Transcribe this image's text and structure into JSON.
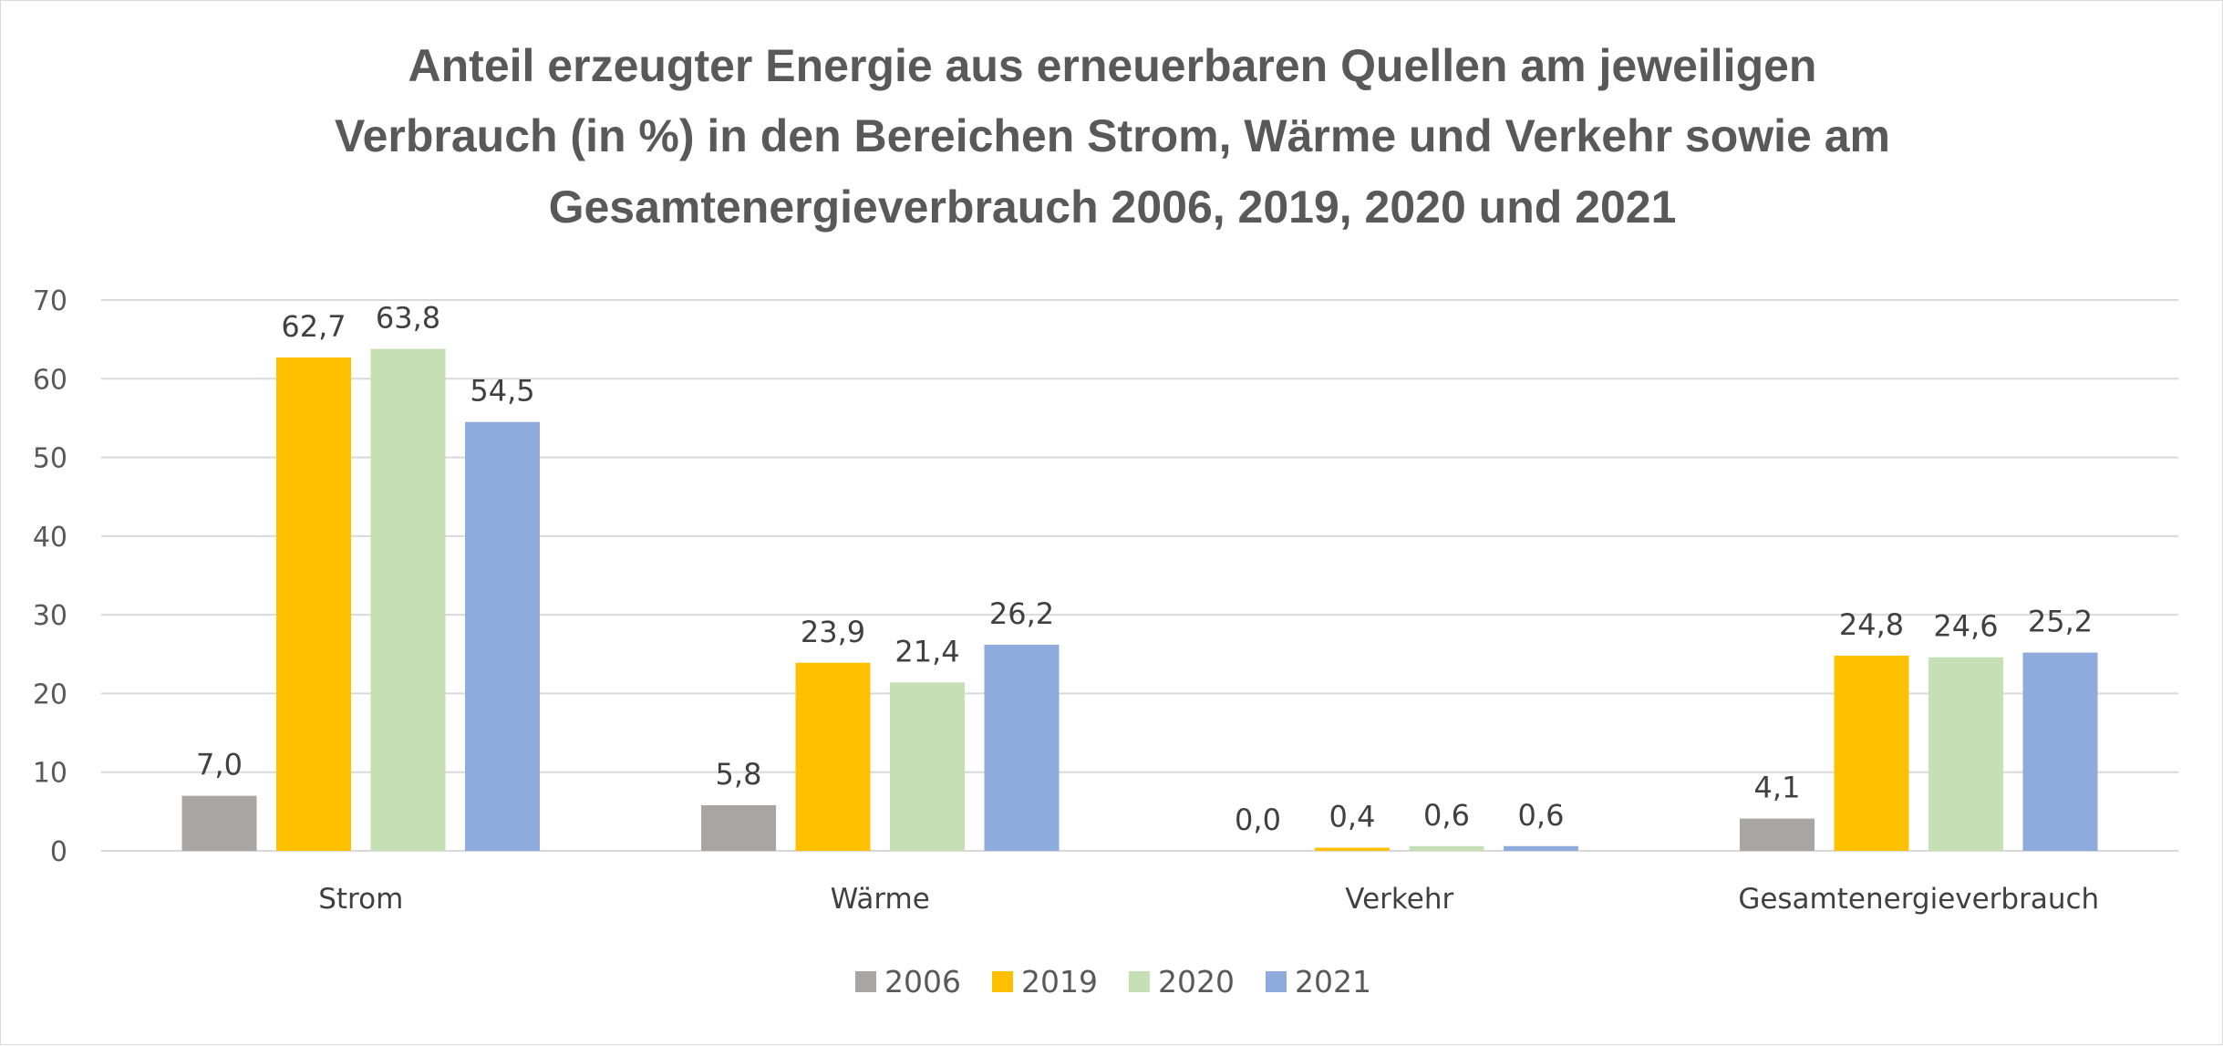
{
  "chart_data": {
    "type": "bar",
    "title": [
      "Anteil erzeugter Energie aus erneuerbaren Quellen am jeweiligen",
      "Verbrauch (in %) in den Bereichen Strom, Wärme und Verkehr sowie am",
      "Gesamtenergieverbrauch 2006, 2019, 2020 und 2021"
    ],
    "xlabel": "",
    "ylabel": "",
    "ylim": [
      0,
      70
    ],
    "yticks": [
      "0",
      "10",
      "20",
      "30",
      "40",
      "50",
      "60",
      "70"
    ],
    "grid": true,
    "legend_position": "bottom",
    "categories": [
      "Strom",
      "Wärme",
      "Verkehr",
      "Gesamtenergieverbrauch"
    ],
    "series": [
      {
        "name": "2006",
        "color": "#a9a5a5",
        "values": [
          7.0,
          5.8,
          0.0,
          4.1
        ],
        "labels": [
          "7,0",
          "5,8",
          "0,0",
          "4,1"
        ]
      },
      {
        "name": "2019",
        "color": "#ffc000",
        "values": [
          62.7,
          23.9,
          0.4,
          24.8
        ],
        "labels": [
          "62,7",
          "23,9",
          "0,4",
          "24,8"
        ]
      },
      {
        "name": "2020",
        "color": "#c5e0b4",
        "values": [
          63.8,
          21.4,
          0.6,
          24.6
        ],
        "labels": [
          "63,8",
          "21,4",
          "0,6",
          "24,6"
        ]
      },
      {
        "name": "2021",
        "color": "#8faadc",
        "values": [
          54.5,
          26.2,
          0.6,
          25.2
        ],
        "labels": [
          "54,5",
          "26,2",
          "0,6",
          "25,2"
        ]
      }
    ]
  }
}
